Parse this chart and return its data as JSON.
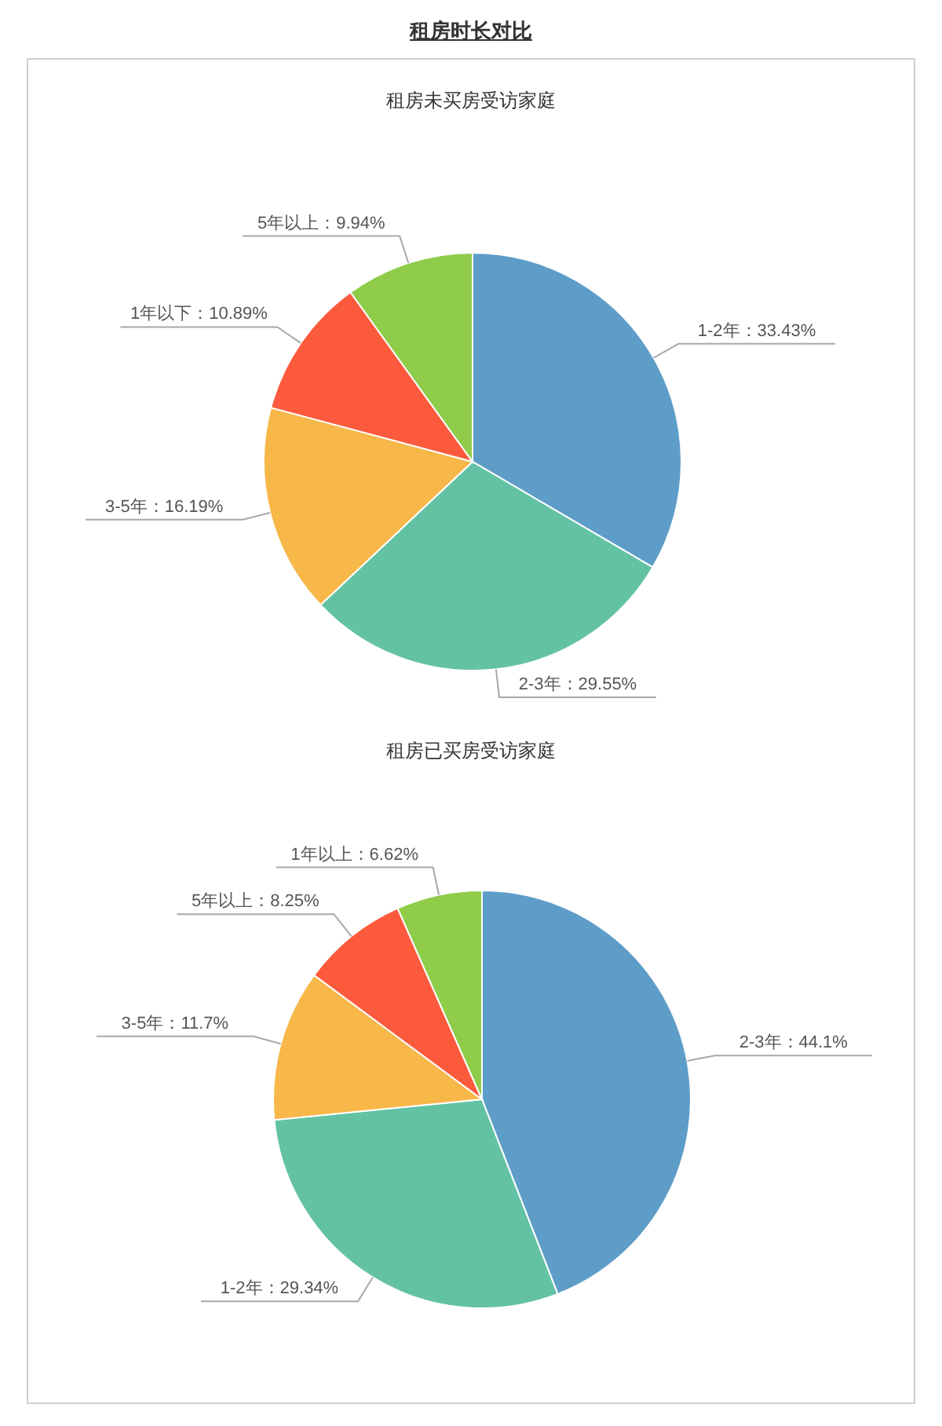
{
  "chart_data": [
    {
      "type": "pie",
      "title": "租房时长对比",
      "subtitle": "租房未买房受访家庭",
      "categories": [
        "1-2年",
        "2-3年",
        "3-5年",
        "1年以下",
        "5年以上"
      ],
      "values": [
        33.43,
        29.55,
        16.19,
        10.89,
        9.94
      ],
      "value_labels": [
        "33.43%",
        "29.55%",
        "16.19%",
        "10.89%",
        "9.94%"
      ],
      "colors": [
        "#5e9dc8",
        "#63c2a4",
        "#f7b749",
        "#fc5a3c",
        "#8ecc4a"
      ]
    },
    {
      "type": "pie",
      "title": "租房已买房受访家庭",
      "categories": [
        "2-3年",
        "1-2年",
        "3-5年",
        "5年以上",
        "1年以上"
      ],
      "values": [
        44.1,
        29.34,
        11.7,
        8.25,
        6.62
      ],
      "value_labels": [
        "44.1%",
        "29.34%",
        "11.7%",
        "8.25%",
        "6.62%"
      ],
      "colors": [
        "#5e9dc8",
        "#63c2a4",
        "#f7b749",
        "#fc5a3c",
        "#8ecc4a"
      ]
    }
  ]
}
